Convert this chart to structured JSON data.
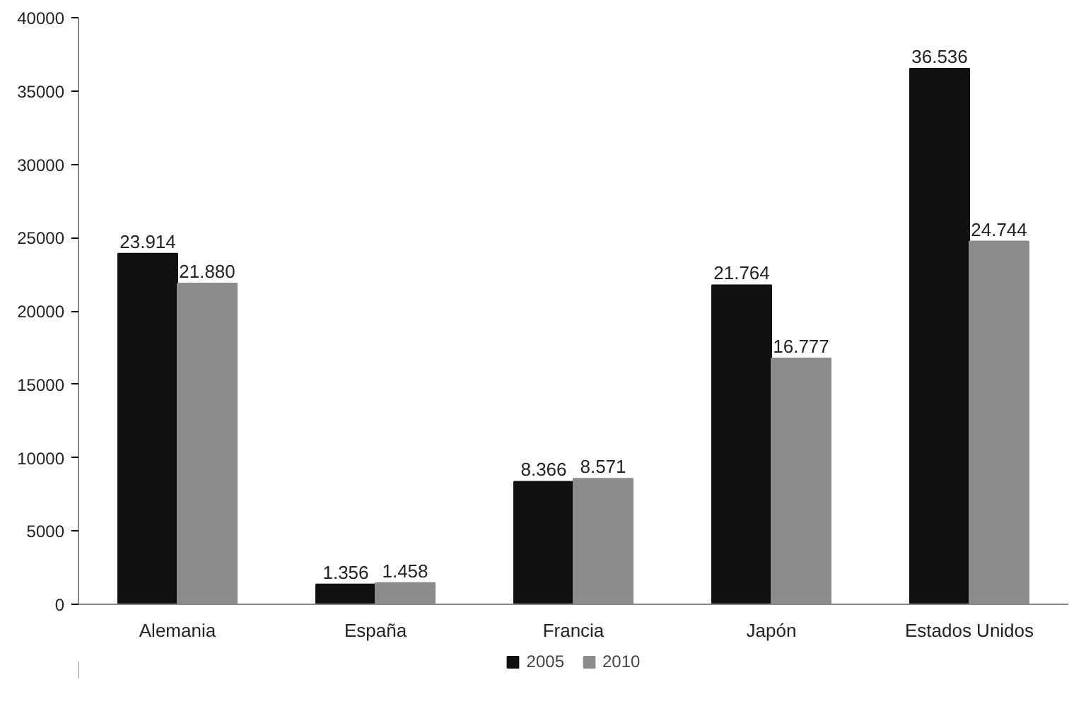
{
  "chart_data": {
    "type": "bar",
    "categories": [
      "Alemania",
      "España",
      "Francia",
      "Japón",
      "Estados Unidos"
    ],
    "series": [
      {
        "name": "2005",
        "color": "#111111",
        "values": [
          23914,
          1356,
          8366,
          21764,
          36536
        ],
        "value_labels": [
          "23.914",
          "1.356",
          "8.366",
          "21.764",
          "36.536"
        ]
      },
      {
        "name": "2010",
        "color": "#8c8c8c",
        "values": [
          21880,
          1458,
          8571,
          16777,
          24744
        ],
        "value_labels": [
          "21.880",
          "1.458",
          "8.571",
          "16.777",
          "24.744"
        ]
      }
    ],
    "ylim": [
      0,
      40000
    ],
    "yticks": [
      0,
      5000,
      10000,
      15000,
      20000,
      25000,
      30000,
      35000,
      40000
    ],
    "grid": false,
    "legend": "bottom"
  }
}
